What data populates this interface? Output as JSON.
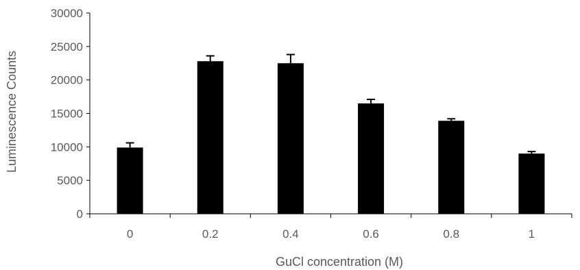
{
  "chart_data": {
    "type": "bar",
    "title": "",
    "xlabel": "GuCl concentration (M)",
    "ylabel": "Luminescence Counts",
    "categories": [
      "0",
      "0.2",
      "0.4",
      "0.6",
      "0.8",
      "1"
    ],
    "values": [
      9900,
      22800,
      22500,
      16500,
      13900,
      9000
    ],
    "error_plus": [
      700,
      800,
      1300,
      600,
      300,
      300
    ],
    "ylim": [
      0,
      30000
    ],
    "yticks": [
      "0",
      "5000",
      "10000",
      "15000",
      "20000",
      "25000",
      "30000"
    ],
    "grid": false,
    "legend": "none",
    "bar_color": "#000000",
    "axis_color": "#000000",
    "text_color": "#595959"
  }
}
